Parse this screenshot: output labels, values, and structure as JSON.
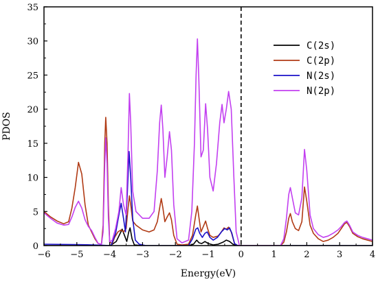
{
  "chart_data": {
    "type": "line",
    "title": "",
    "xlabel": "Energy(eV)",
    "ylabel": "PDOS",
    "xlim": [
      -6,
      4
    ],
    "ylim": [
      0,
      35
    ],
    "xticks": [
      -6,
      -5,
      -4,
      -3,
      -2,
      -1,
      0,
      1,
      2,
      3,
      4
    ],
    "yticks": [
      0,
      5,
      10,
      15,
      20,
      25,
      30,
      35
    ],
    "grid": false,
    "fermi_level": 0,
    "legend_position": "top-right",
    "series": [
      {
        "name": "C(2s)",
        "color": "#000000",
        "points": [
          [
            -6,
            0
          ],
          [
            -4.2,
            0
          ],
          [
            -4.05,
            0
          ],
          [
            -3.95,
            0.1
          ],
          [
            -3.8,
            0.6
          ],
          [
            -3.7,
            1.6
          ],
          [
            -3.62,
            2.4
          ],
          [
            -3.55,
            1.5
          ],
          [
            -3.48,
            0.6
          ],
          [
            -3.42,
            2.0
          ],
          [
            -3.38,
            2.6
          ],
          [
            -3.32,
            1.0
          ],
          [
            -3.25,
            0.1
          ],
          [
            -3.0,
            0
          ],
          [
            -1.6,
            0
          ],
          [
            -1.45,
            0.2
          ],
          [
            -1.35,
            0.8
          ],
          [
            -1.28,
            0.4
          ],
          [
            -1.2,
            0.3
          ],
          [
            -1.1,
            0.6
          ],
          [
            -1.0,
            0.3
          ],
          [
            -0.85,
            0.1
          ],
          [
            -0.7,
            0.2
          ],
          [
            -0.55,
            0.5
          ],
          [
            -0.45,
            0.8
          ],
          [
            -0.35,
            0.6
          ],
          [
            -0.25,
            0.2
          ],
          [
            -0.15,
            0
          ],
          [
            4,
            0
          ]
        ]
      },
      {
        "name": "C(2p)",
        "color": "#b03a14",
        "points": [
          [
            -6,
            5.0
          ],
          [
            -5.8,
            4.2
          ],
          [
            -5.6,
            3.6
          ],
          [
            -5.4,
            3.2
          ],
          [
            -5.25,
            3.5
          ],
          [
            -5.15,
            5.5
          ],
          [
            -5.05,
            8.5
          ],
          [
            -4.95,
            12.2
          ],
          [
            -4.85,
            10.5
          ],
          [
            -4.75,
            6.0
          ],
          [
            -4.65,
            3.0
          ],
          [
            -4.55,
            2.0
          ],
          [
            -4.45,
            1.0
          ],
          [
            -4.35,
            0.3
          ],
          [
            -4.25,
            0.2
          ],
          [
            -4.2,
            3.0
          ],
          [
            -4.15,
            15.0
          ],
          [
            -4.12,
            18.8
          ],
          [
            -4.08,
            15.0
          ],
          [
            -4.04,
            6.0
          ],
          [
            -4.0,
            0.5
          ],
          [
            -3.92,
            0.3
          ],
          [
            -3.85,
            1.2
          ],
          [
            -3.75,
            2.0
          ],
          [
            -3.65,
            2.3
          ],
          [
            -3.58,
            2.0
          ],
          [
            -3.5,
            2.5
          ],
          [
            -3.44,
            5.5
          ],
          [
            -3.4,
            7.3
          ],
          [
            -3.36,
            6.0
          ],
          [
            -3.3,
            3.6
          ],
          [
            -3.2,
            3.0
          ],
          [
            -3.0,
            2.3
          ],
          [
            -2.8,
            2.0
          ],
          [
            -2.65,
            2.3
          ],
          [
            -2.55,
            3.5
          ],
          [
            -2.48,
            5.5
          ],
          [
            -2.43,
            6.9
          ],
          [
            -2.38,
            5.5
          ],
          [
            -2.32,
            3.5
          ],
          [
            -2.25,
            4.2
          ],
          [
            -2.18,
            4.8
          ],
          [
            -2.12,
            3.8
          ],
          [
            -2.05,
            1.5
          ],
          [
            -1.95,
            0.2
          ],
          [
            -1.8,
            0.1
          ],
          [
            -1.6,
            0.2
          ],
          [
            -1.48,
            1.5
          ],
          [
            -1.38,
            4.5
          ],
          [
            -1.33,
            5.8
          ],
          [
            -1.28,
            4.0
          ],
          [
            -1.22,
            2.0
          ],
          [
            -1.15,
            2.8
          ],
          [
            -1.08,
            3.6
          ],
          [
            -1.02,
            2.5
          ],
          [
            -0.95,
            1.5
          ],
          [
            -0.85,
            1.2
          ],
          [
            -0.7,
            1.4
          ],
          [
            -0.6,
            2.0
          ],
          [
            -0.52,
            2.6
          ],
          [
            -0.45,
            2.4
          ],
          [
            -0.38,
            2.7
          ],
          [
            -0.3,
            2.0
          ],
          [
            -0.2,
            0.3
          ],
          [
            -0.1,
            0
          ],
          [
            1.2,
            0
          ],
          [
            1.3,
            0.5
          ],
          [
            1.38,
            2.0
          ],
          [
            1.45,
            4.0
          ],
          [
            1.5,
            4.7
          ],
          [
            1.56,
            3.5
          ],
          [
            1.65,
            2.5
          ],
          [
            1.75,
            2.2
          ],
          [
            1.85,
            3.5
          ],
          [
            1.93,
            8.6
          ],
          [
            2.0,
            6.5
          ],
          [
            2.1,
            3.0
          ],
          [
            2.2,
            1.8
          ],
          [
            2.35,
            1.0
          ],
          [
            2.5,
            0.6
          ],
          [
            2.65,
            0.8
          ],
          [
            2.8,
            1.2
          ],
          [
            2.95,
            1.8
          ],
          [
            3.05,
            2.5
          ],
          [
            3.15,
            3.2
          ],
          [
            3.22,
            3.4
          ],
          [
            3.3,
            2.8
          ],
          [
            3.4,
            1.8
          ],
          [
            3.55,
            1.3
          ],
          [
            3.7,
            1.0
          ],
          [
            3.85,
            0.8
          ],
          [
            4,
            0.6
          ]
        ]
      },
      {
        "name": "N(2s)",
        "color": "#1a10c8",
        "points": [
          [
            -6,
            0.2
          ],
          [
            -5.0,
            0.15
          ],
          [
            -4.5,
            0.1
          ],
          [
            -4.2,
            0.05
          ],
          [
            -4.0,
            0
          ],
          [
            -3.95,
            0.1
          ],
          [
            -3.82,
            1.8
          ],
          [
            -3.72,
            4.5
          ],
          [
            -3.65,
            6.2
          ],
          [
            -3.58,
            4.0
          ],
          [
            -3.52,
            2.0
          ],
          [
            -3.46,
            8.0
          ],
          [
            -3.41,
            13.8
          ],
          [
            -3.36,
            10.0
          ],
          [
            -3.3,
            4.0
          ],
          [
            -3.22,
            0.8
          ],
          [
            -3.1,
            0.2
          ],
          [
            -2.9,
            0
          ],
          [
            -1.6,
            0
          ],
          [
            -1.48,
            1.0
          ],
          [
            -1.38,
            2.4
          ],
          [
            -1.32,
            2.6
          ],
          [
            -1.26,
            1.8
          ],
          [
            -1.18,
            1.2
          ],
          [
            -1.1,
            1.8
          ],
          [
            -1.03,
            2.0
          ],
          [
            -0.95,
            1.2
          ],
          [
            -0.85,
            0.8
          ],
          [
            -0.72,
            1.2
          ],
          [
            -0.6,
            2.0
          ],
          [
            -0.5,
            2.5
          ],
          [
            -0.42,
            2.3
          ],
          [
            -0.35,
            2.6
          ],
          [
            -0.28,
            1.8
          ],
          [
            -0.2,
            0.3
          ],
          [
            -0.1,
            0
          ],
          [
            4,
            0
          ]
        ]
      },
      {
        "name": "N(2p)",
        "color": "#c23ff0",
        "points": [
          [
            -6,
            4.8
          ],
          [
            -5.8,
            4.0
          ],
          [
            -5.6,
            3.3
          ],
          [
            -5.4,
            3.0
          ],
          [
            -5.25,
            3.1
          ],
          [
            -5.15,
            4.2
          ],
          [
            -5.05,
            5.6
          ],
          [
            -4.95,
            6.5
          ],
          [
            -4.85,
            5.5
          ],
          [
            -4.75,
            3.8
          ],
          [
            -4.65,
            2.8
          ],
          [
            -4.55,
            2.2
          ],
          [
            -4.45,
            1.2
          ],
          [
            -4.35,
            0.3
          ],
          [
            -4.25,
            0.2
          ],
          [
            -4.2,
            2.0
          ],
          [
            -4.15,
            12.0
          ],
          [
            -4.12,
            15.8
          ],
          [
            -4.08,
            12.0
          ],
          [
            -4.04,
            4.0
          ],
          [
            -4.0,
            0.5
          ],
          [
            -3.92,
            0.8
          ],
          [
            -3.82,
            2.5
          ],
          [
            -3.72,
            5.0
          ],
          [
            -3.65,
            8.5
          ],
          [
            -3.58,
            6.0
          ],
          [
            -3.5,
            4.5
          ],
          [
            -3.44,
            14.0
          ],
          [
            -3.4,
            22.3
          ],
          [
            -3.36,
            18.0
          ],
          [
            -3.3,
            8.0
          ],
          [
            -3.2,
            5.0
          ],
          [
            -3.0,
            4.0
          ],
          [
            -2.8,
            4.0
          ],
          [
            -2.65,
            5.0
          ],
          [
            -2.55,
            11.0
          ],
          [
            -2.48,
            18.0
          ],
          [
            -2.43,
            20.6
          ],
          [
            -2.38,
            17.0
          ],
          [
            -2.32,
            10.0
          ],
          [
            -2.25,
            13.0
          ],
          [
            -2.18,
            16.7
          ],
          [
            -2.12,
            14.0
          ],
          [
            -2.05,
            6.0
          ],
          [
            -1.95,
            1.0
          ],
          [
            -1.8,
            0.4
          ],
          [
            -1.6,
            0.8
          ],
          [
            -1.5,
            5.0
          ],
          [
            -1.42,
            15.0
          ],
          [
            -1.37,
            25.0
          ],
          [
            -1.33,
            30.3
          ],
          [
            -1.29,
            25.0
          ],
          [
            -1.22,
            13.0
          ],
          [
            -1.15,
            14.0
          ],
          [
            -1.08,
            20.8
          ],
          [
            -1.02,
            17.0
          ],
          [
            -0.95,
            10.0
          ],
          [
            -0.85,
            8.0
          ],
          [
            -0.75,
            12.0
          ],
          [
            -0.65,
            18.0
          ],
          [
            -0.58,
            20.7
          ],
          [
            -0.52,
            18.0
          ],
          [
            -0.45,
            20.0
          ],
          [
            -0.38,
            22.6
          ],
          [
            -0.3,
            20.0
          ],
          [
            -0.22,
            10.0
          ],
          [
            -0.15,
            2.0
          ],
          [
            -0.05,
            0
          ],
          [
            1.2,
            0
          ],
          [
            1.3,
            1.0
          ],
          [
            1.38,
            4.0
          ],
          [
            1.45,
            7.5
          ],
          [
            1.5,
            8.5
          ],
          [
            1.56,
            7.0
          ],
          [
            1.65,
            4.8
          ],
          [
            1.75,
            4.5
          ],
          [
            1.85,
            7.0
          ],
          [
            1.93,
            14.1
          ],
          [
            2.0,
            11.0
          ],
          [
            2.1,
            4.5
          ],
          [
            2.2,
            2.5
          ],
          [
            2.35,
            1.6
          ],
          [
            2.5,
            1.2
          ],
          [
            2.65,
            1.4
          ],
          [
            2.8,
            1.8
          ],
          [
            2.95,
            2.3
          ],
          [
            3.05,
            2.8
          ],
          [
            3.15,
            3.4
          ],
          [
            3.22,
            3.6
          ],
          [
            3.3,
            3.0
          ],
          [
            3.4,
            2.0
          ],
          [
            3.55,
            1.5
          ],
          [
            3.7,
            1.2
          ],
          [
            3.85,
            1.0
          ],
          [
            4,
            0.8
          ]
        ]
      }
    ]
  }
}
